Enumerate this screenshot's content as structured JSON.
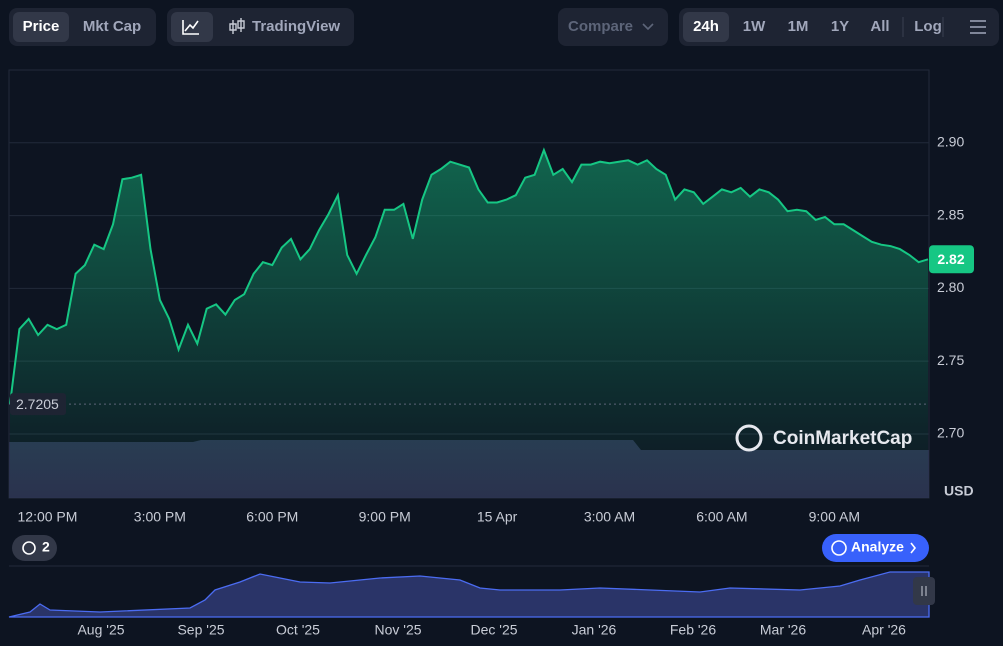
{
  "ui": {
    "price": "Price",
    "mkt_cap": "Mkt Cap",
    "tradingview": "TradingView",
    "compare": "Compare",
    "ranges": [
      "24h",
      "1W",
      "1M",
      "1Y",
      "All"
    ],
    "log": "Log",
    "watermark": "CoinMarketCap",
    "history_count": "2",
    "analyze": "Analyze",
    "navigator_labels": [
      "Aug '25",
      "Sep '25",
      "Oct '25",
      "Nov '25",
      "Dec '25",
      "Jan '26",
      "Feb '26",
      "Mar '26",
      "Apr '26"
    ]
  },
  "chart_data": {
    "type": "line",
    "color": "#16c784",
    "y_axis_label": "USD",
    "grid": true,
    "ylim": [
      2.656,
      2.95
    ],
    "yticks": [
      {
        "value": 2.7,
        "label": "2.70"
      },
      {
        "value": 2.75,
        "label": "2.75"
      },
      {
        "value": 2.8,
        "label": "2.80"
      },
      {
        "value": 2.85,
        "label": "2.85"
      },
      {
        "value": 2.9,
        "label": "2.90"
      }
    ],
    "start_price": 2.7205,
    "current_price": 2.82,
    "categories": [
      null,
      null,
      null,
      null,
      "12:00 PM",
      null,
      null,
      null,
      null,
      null,
      null,
      null,
      null,
      null,
      null,
      null,
      "3:00 PM",
      null,
      null,
      null,
      null,
      null,
      null,
      null,
      null,
      null,
      null,
      null,
      "6:00 PM",
      null,
      null,
      null,
      null,
      null,
      null,
      null,
      null,
      null,
      null,
      null,
      "9:00 PM",
      null,
      null,
      null,
      null,
      null,
      null,
      null,
      null,
      null,
      null,
      null,
      "15 Apr",
      null,
      null,
      null,
      null,
      null,
      null,
      null,
      null,
      null,
      null,
      null,
      "3:00 AM",
      null,
      null,
      null,
      null,
      null,
      null,
      null,
      null,
      null,
      null,
      null,
      "6:00 AM",
      null,
      null,
      null,
      null,
      null,
      null,
      null,
      null,
      null,
      null,
      null,
      "9:00 AM",
      null,
      null,
      null,
      null,
      null,
      null,
      null,
      null,
      null,
      null
    ],
    "values": [
      2.7205,
      2.772,
      2.779,
      2.768,
      2.775,
      2.772,
      2.775,
      2.81,
      2.816,
      2.83,
      2.827,
      2.844,
      2.875,
      2.876,
      2.878,
      2.827,
      2.792,
      2.779,
      2.758,
      2.775,
      2.762,
      2.786,
      2.789,
      2.782,
      2.792,
      2.796,
      2.81,
      2.818,
      2.816,
      2.828,
      2.834,
      2.82,
      2.827,
      2.84,
      2.851,
      2.864,
      2.823,
      2.81,
      2.823,
      2.835,
      2.854,
      2.854,
      2.858,
      2.834,
      2.861,
      2.878,
      2.882,
      2.887,
      2.885,
      2.883,
      2.868,
      2.859,
      2.859,
      2.861,
      2.864,
      2.876,
      2.878,
      2.895,
      2.878,
      2.882,
      2.873,
      2.885,
      2.885,
      2.887,
      2.886,
      2.887,
      2.888,
      2.885,
      2.888,
      2.882,
      2.878,
      2.861,
      2.868,
      2.866,
      2.858,
      2.863,
      2.868,
      2.866,
      2.869,
      2.863,
      2.868,
      2.866,
      2.861,
      2.853,
      2.854,
      2.853,
      2.847,
      2.849,
      2.844,
      2.844,
      2.84,
      2.836,
      2.832,
      2.83,
      2.829,
      2.827,
      2.823,
      2.818,
      2.82
    ]
  }
}
